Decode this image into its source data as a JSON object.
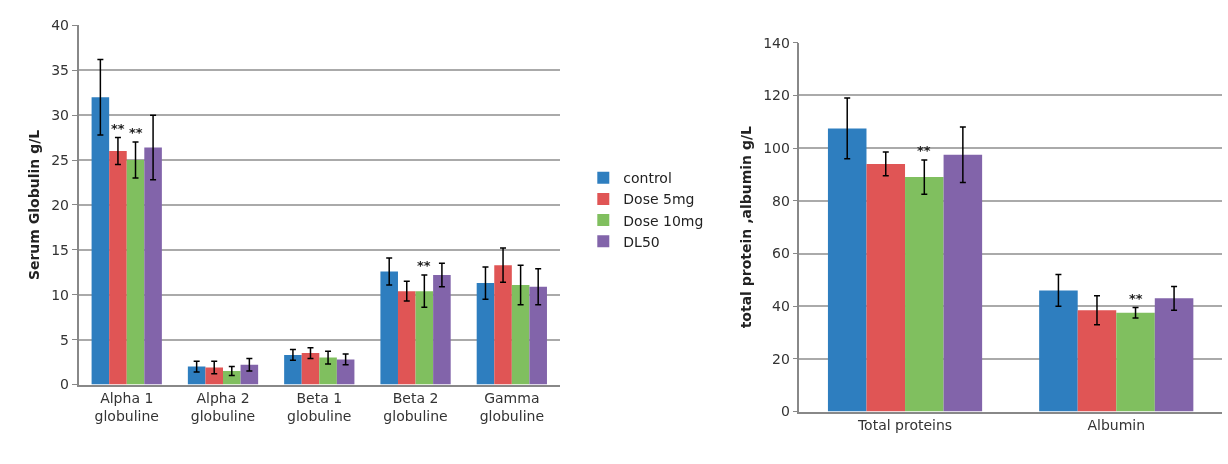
{
  "chart_data": [
    {
      "type": "bar",
      "ylabel": "Serum Globulin g/L",
      "categories": [
        "Alpha 1 globuline",
        "Alpha 2 globuline",
        "Beta 1 globuline",
        "Beta 2 globuline",
        "Gamma globuline"
      ],
      "ylim": [
        0,
        40
      ],
      "yticks": [
        0,
        5,
        10,
        15,
        20,
        25,
        30,
        35,
        40
      ],
      "grid": "y",
      "legend": "right",
      "series": [
        {
          "name": "control",
          "color": "#2e7ebf",
          "values": [
            32,
            2.0,
            3.3,
            12.6,
            11.3
          ],
          "errors": [
            4.2,
            0.6,
            0.6,
            1.5,
            1.8
          ]
        },
        {
          "name": "Dose 5mg",
          "color": "#e05555",
          "values": [
            26,
            1.9,
            3.5,
            10.4,
            13.3
          ],
          "errors": [
            1.5,
            0.7,
            0.6,
            1.1,
            1.9
          ]
        },
        {
          "name": "Dose 10mg",
          "color": "#80bf5f",
          "values": [
            25,
            1.5,
            3.0,
            10.4,
            11.1
          ],
          "errors": [
            2.0,
            0.5,
            0.7,
            1.8,
            2.2
          ]
        },
        {
          "name": "DL50",
          "color": "#8264aa",
          "values": [
            26.4,
            2.2,
            2.8,
            12.2,
            10.9
          ],
          "errors": [
            3.6,
            0.7,
            0.6,
            1.3,
            2.0
          ]
        }
      ],
      "annotations": [
        {
          "text": "**",
          "x": "Alpha 1 globuline",
          "y": 26
        },
        {
          "text": "**",
          "x": "Alpha 1 globuline",
          "y": 25
        },
        {
          "text": "**",
          "x": "Beta 2 globuline",
          "y": 10.4
        }
      ]
    },
    {
      "type": "bar",
      "ylabel": "total protein ,albumin g/L",
      "categories": [
        "Total proteins",
        "Albumin"
      ],
      "ylim": [
        0,
        140
      ],
      "yticks": [
        0,
        20,
        40,
        60,
        80,
        100,
        120,
        140
      ],
      "grid": "y",
      "series": [
        {
          "color": "#2e7ebf",
          "values": [
            107.5,
            46
          ],
          "errors": [
            11.5,
            6
          ]
        },
        {
          "color": "#e05555",
          "values": [
            94,
            38.5
          ],
          "errors": [
            4.5,
            5.5
          ]
        },
        {
          "color": "#80bf5f",
          "values": [
            89,
            37.5
          ],
          "errors": [
            6.5,
            2
          ]
        },
        {
          "color": "#8264aa",
          "values": [
            97.5,
            43
          ],
          "errors": [
            10.5,
            4.5
          ]
        }
      ],
      "annotations": [
        {
          "text": "**",
          "x": "Total proteins",
          "y": 89
        },
        {
          "text": "**",
          "x": "Albumin",
          "y": 37.5
        }
      ]
    }
  ]
}
